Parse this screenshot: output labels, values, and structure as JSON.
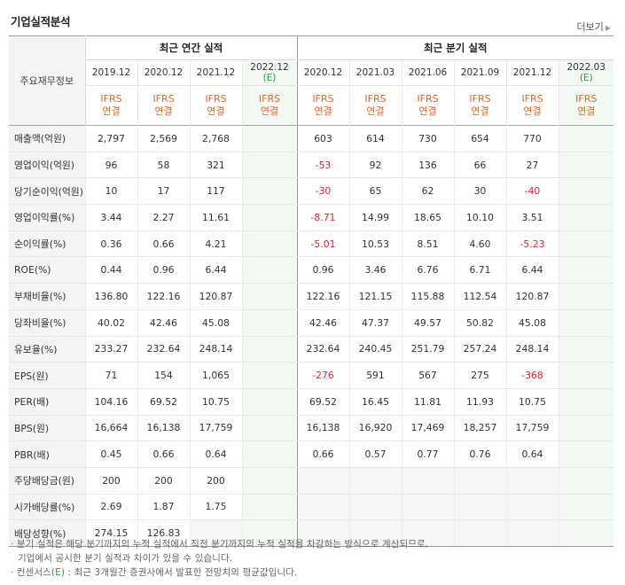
{
  "section_title": "기업실적분석",
  "more_label": "더보기",
  "table": {
    "label_header": "주요재무정보",
    "annual_header": "최근 연간 실적",
    "quarter_header": "최근 분기 실적",
    "annual_periods": [
      "2019.12",
      "2020.12",
      "2021.12",
      "2022.12"
    ],
    "quarter_periods": [
      "2020.12",
      "2021.03",
      "2021.06",
      "2021.09",
      "2021.12",
      "2022.03"
    ],
    "estimate_mark": "(E)",
    "type_line1": "IFRS",
    "type_line2": "연결",
    "rows": [
      {
        "label": "매출액(억원)",
        "annual": [
          "2,797",
          "2,569",
          "2,768",
          ""
        ],
        "quarter": [
          "603",
          "614",
          "730",
          "654",
          "770",
          ""
        ]
      },
      {
        "label": "영업이익(억원)",
        "annual": [
          "96",
          "58",
          "321",
          ""
        ],
        "quarter": [
          "-53",
          "92",
          "136",
          "66",
          "27",
          ""
        ]
      },
      {
        "label": "당기순이익(억원)",
        "annual": [
          "10",
          "17",
          "117",
          ""
        ],
        "quarter": [
          "-30",
          "65",
          "62",
          "30",
          "-40",
          ""
        ]
      },
      {
        "label": "영업이익률(%)",
        "annual": [
          "3.44",
          "2.27",
          "11.61",
          ""
        ],
        "quarter": [
          "-8.71",
          "14.99",
          "18.65",
          "10.10",
          "3.51",
          ""
        ]
      },
      {
        "label": "순이익률(%)",
        "annual": [
          "0.36",
          "0.66",
          "4.21",
          ""
        ],
        "quarter": [
          "-5.01",
          "10.53",
          "8.51",
          "4.60",
          "-5.23",
          ""
        ]
      },
      {
        "label": "ROE(%)",
        "annual": [
          "0.44",
          "0.96",
          "6.44",
          ""
        ],
        "quarter": [
          "0.96",
          "3.46",
          "6.76",
          "6.71",
          "6.44",
          ""
        ]
      },
      {
        "label": "부채비율(%)",
        "annual": [
          "136.80",
          "122.16",
          "120.87",
          ""
        ],
        "quarter": [
          "122.16",
          "121.15",
          "115.88",
          "112.54",
          "120.87",
          ""
        ]
      },
      {
        "label": "당좌비율(%)",
        "annual": [
          "40.02",
          "42.46",
          "45.08",
          ""
        ],
        "quarter": [
          "42.46",
          "47.37",
          "49.57",
          "50.82",
          "45.08",
          ""
        ]
      },
      {
        "label": "유보율(%)",
        "annual": [
          "233.27",
          "232.64",
          "248.14",
          ""
        ],
        "quarter": [
          "232.64",
          "240.45",
          "251.79",
          "257.24",
          "248.14",
          ""
        ]
      },
      {
        "label": "EPS(원)",
        "annual": [
          "71",
          "154",
          "1,065",
          ""
        ],
        "quarter": [
          "-276",
          "591",
          "567",
          "275",
          "-368",
          ""
        ]
      },
      {
        "label": "PER(배)",
        "annual": [
          "104.16",
          "69.52",
          "10.75",
          ""
        ],
        "quarter": [
          "69.52",
          "16.45",
          "11.81",
          "11.93",
          "10.75",
          ""
        ]
      },
      {
        "label": "BPS(원)",
        "annual": [
          "16,664",
          "16,138",
          "17,759",
          ""
        ],
        "quarter": [
          "16,138",
          "16,920",
          "17,469",
          "18,257",
          "17,759",
          ""
        ]
      },
      {
        "label": "PBR(배)",
        "annual": [
          "0.45",
          "0.66",
          "0.64",
          ""
        ],
        "quarter": [
          "0.66",
          "0.57",
          "0.77",
          "0.76",
          "0.64",
          ""
        ]
      },
      {
        "label": "주당배당금(원)",
        "annual": [
          "200",
          "200",
          "200",
          ""
        ],
        "quarter": [
          "",
          "",
          "",
          "",
          "",
          ""
        ]
      },
      {
        "label": "시가배당률(%)",
        "annual": [
          "2.69",
          "1.87",
          "1.75",
          ""
        ],
        "quarter": [
          "",
          "",
          "",
          "",
          "",
          ""
        ]
      },
      {
        "label": "배당성향(%)",
        "annual": [
          "274.15",
          "126.83",
          "",
          ""
        ],
        "quarter": [
          "",
          "",
          "",
          "",
          "",
          ""
        ]
      }
    ]
  },
  "notes": {
    "line1": "· 분기 실적은 해당 분기까지의 누적 실적에서 직전 분기까지의 누적 실적을 차감하는 방식으로 계산되므로,",
    "line2": "기업에서 공시한 분기 실적과 차이가 있을 수 있습니다.",
    "line3_pre": "· 컨센서스",
    "line3_mark": "(E)",
    "line3_post": " : 최근 3개월간 증권사에서 발표한 전망치의 평균값입니다."
  }
}
